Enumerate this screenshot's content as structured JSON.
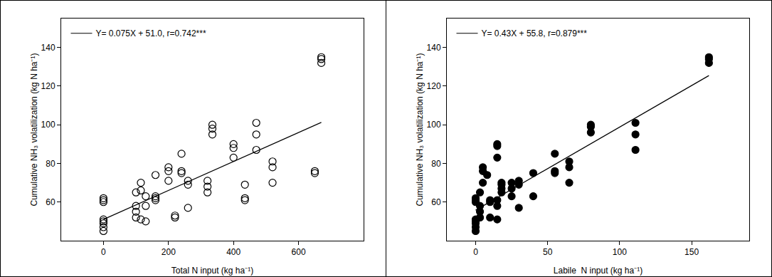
{
  "chart_data": [
    {
      "type": "scatter",
      "x_label": "Total N input (kg ha⁻¹)",
      "y_label": "Cumulative NH₃ volatilization (kg N ha⁻¹)",
      "xlim": [
        -130,
        800
      ],
      "ylim": [
        40,
        155
      ],
      "xticks": [
        0,
        200,
        400,
        600
      ],
      "yticks": [
        60,
        80,
        100,
        120,
        140
      ],
      "grid": false,
      "legend": "top left",
      "series": [
        {
          "type": "scatter",
          "marker": "open circle",
          "color": "#000000",
          "x": [
            0,
            0,
            0,
            0,
            0,
            0,
            0,
            0,
            100,
            100,
            100,
            100,
            115,
            115,
            115,
            130,
            130,
            130,
            160,
            160,
            160,
            160,
            200,
            200,
            200,
            220,
            220,
            240,
            240,
            240,
            260,
            260,
            260,
            320,
            320,
            320,
            335,
            335,
            335,
            400,
            400,
            400,
            435,
            435,
            435,
            470,
            470,
            470,
            520,
            520,
            520,
            650,
            650,
            670,
            670,
            670
          ],
          "values": [
            45,
            47,
            49,
            50,
            51,
            60,
            61,
            62,
            65,
            58,
            55,
            52,
            51,
            66,
            70,
            50,
            58,
            63,
            61,
            62,
            63,
            74,
            76,
            78,
            71,
            52,
            53,
            85,
            76,
            75,
            57,
            69,
            71,
            65,
            68,
            71,
            95,
            98,
            100,
            90,
            88,
            83,
            62,
            61,
            69,
            101,
            95,
            87,
            81,
            78,
            70,
            75,
            76,
            132,
            134,
            135
          ]
        },
        {
          "type": "line",
          "name": "Y= 0.075X + 51.0, r=0.742***",
          "color": "#000000",
          "line_style": "solid",
          "x": [
            0,
            670
          ],
          "values": [
            51.0,
            101.25
          ]
        }
      ]
    },
    {
      "type": "scatter",
      "x_label": "Labile  N input (kg ha⁻¹)",
      "y_label": "Cumulative NH₃ volatilization (kg N ha⁻¹)",
      "xlim": [
        -20,
        190
      ],
      "ylim": [
        40,
        155
      ],
      "xticks": [
        0,
        50,
        100,
        150
      ],
      "yticks": [
        60,
        80,
        100,
        120,
        140
      ],
      "grid": false,
      "legend": "top left",
      "series": [
        {
          "type": "scatter",
          "marker": "filled circle",
          "color": "#000000",
          "x": [
            0,
            0,
            0,
            0,
            0,
            0,
            0,
            0,
            3,
            3,
            3,
            3,
            5,
            5,
            5,
            8,
            10,
            10,
            10,
            15,
            15,
            15,
            15,
            15,
            15,
            18,
            18,
            18,
            18,
            25,
            25,
            25,
            30,
            30,
            30,
            40,
            40,
            55,
            55,
            55,
            65,
            65,
            65,
            80,
            80,
            80,
            111,
            111,
            111,
            162,
            162,
            162
          ],
          "values": [
            45,
            47,
            49,
            50,
            51,
            60,
            61,
            62,
            65,
            55,
            58,
            52,
            70,
            76,
            78,
            74,
            52,
            60,
            61,
            83,
            89,
            90,
            58,
            51,
            61,
            65,
            67,
            69,
            70,
            63,
            67,
            70,
            57,
            69,
            71,
            63,
            75,
            85,
            76,
            75,
            70,
            78,
            81,
            96,
            99,
            100,
            87,
            95,
            101,
            132,
            134,
            135
          ]
        },
        {
          "type": "line",
          "name": "Y= 0.43X + 55.8, r=0.879***",
          "color": "#000000",
          "line_style": "solid",
          "x": [
            0,
            162
          ],
          "values": [
            55.8,
            125.46
          ]
        }
      ]
    }
  ]
}
